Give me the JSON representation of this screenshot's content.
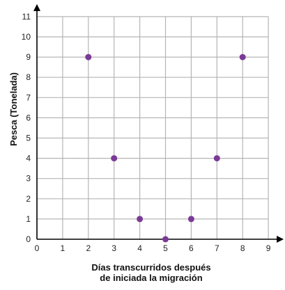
{
  "chart_data": {
    "type": "scatter",
    "title": "",
    "xlabel_lines": [
      "Días transcurridos después",
      "de iniciada la migración"
    ],
    "ylabel": "Pesca (Tonelada)",
    "xlim": [
      0,
      9
    ],
    "ylim": [
      0,
      11
    ],
    "xticks": [
      "0",
      "1",
      "2",
      "3",
      "4",
      "5",
      "6",
      "7",
      "8",
      "9"
    ],
    "yticks": [
      "0",
      "1",
      "2",
      "3",
      "4",
      "5",
      "6",
      "7",
      "8",
      "9",
      "10",
      "11"
    ],
    "grid": true,
    "series": [
      {
        "x": [
          2,
          3,
          4,
          5,
          6,
          7,
          8
        ],
        "y": [
          9,
          4,
          1,
          0,
          1,
          4,
          9
        ]
      }
    ],
    "colors": {
      "point": "#7b3a96",
      "grid": "#b5b5b5",
      "axis": "#000000"
    }
  }
}
